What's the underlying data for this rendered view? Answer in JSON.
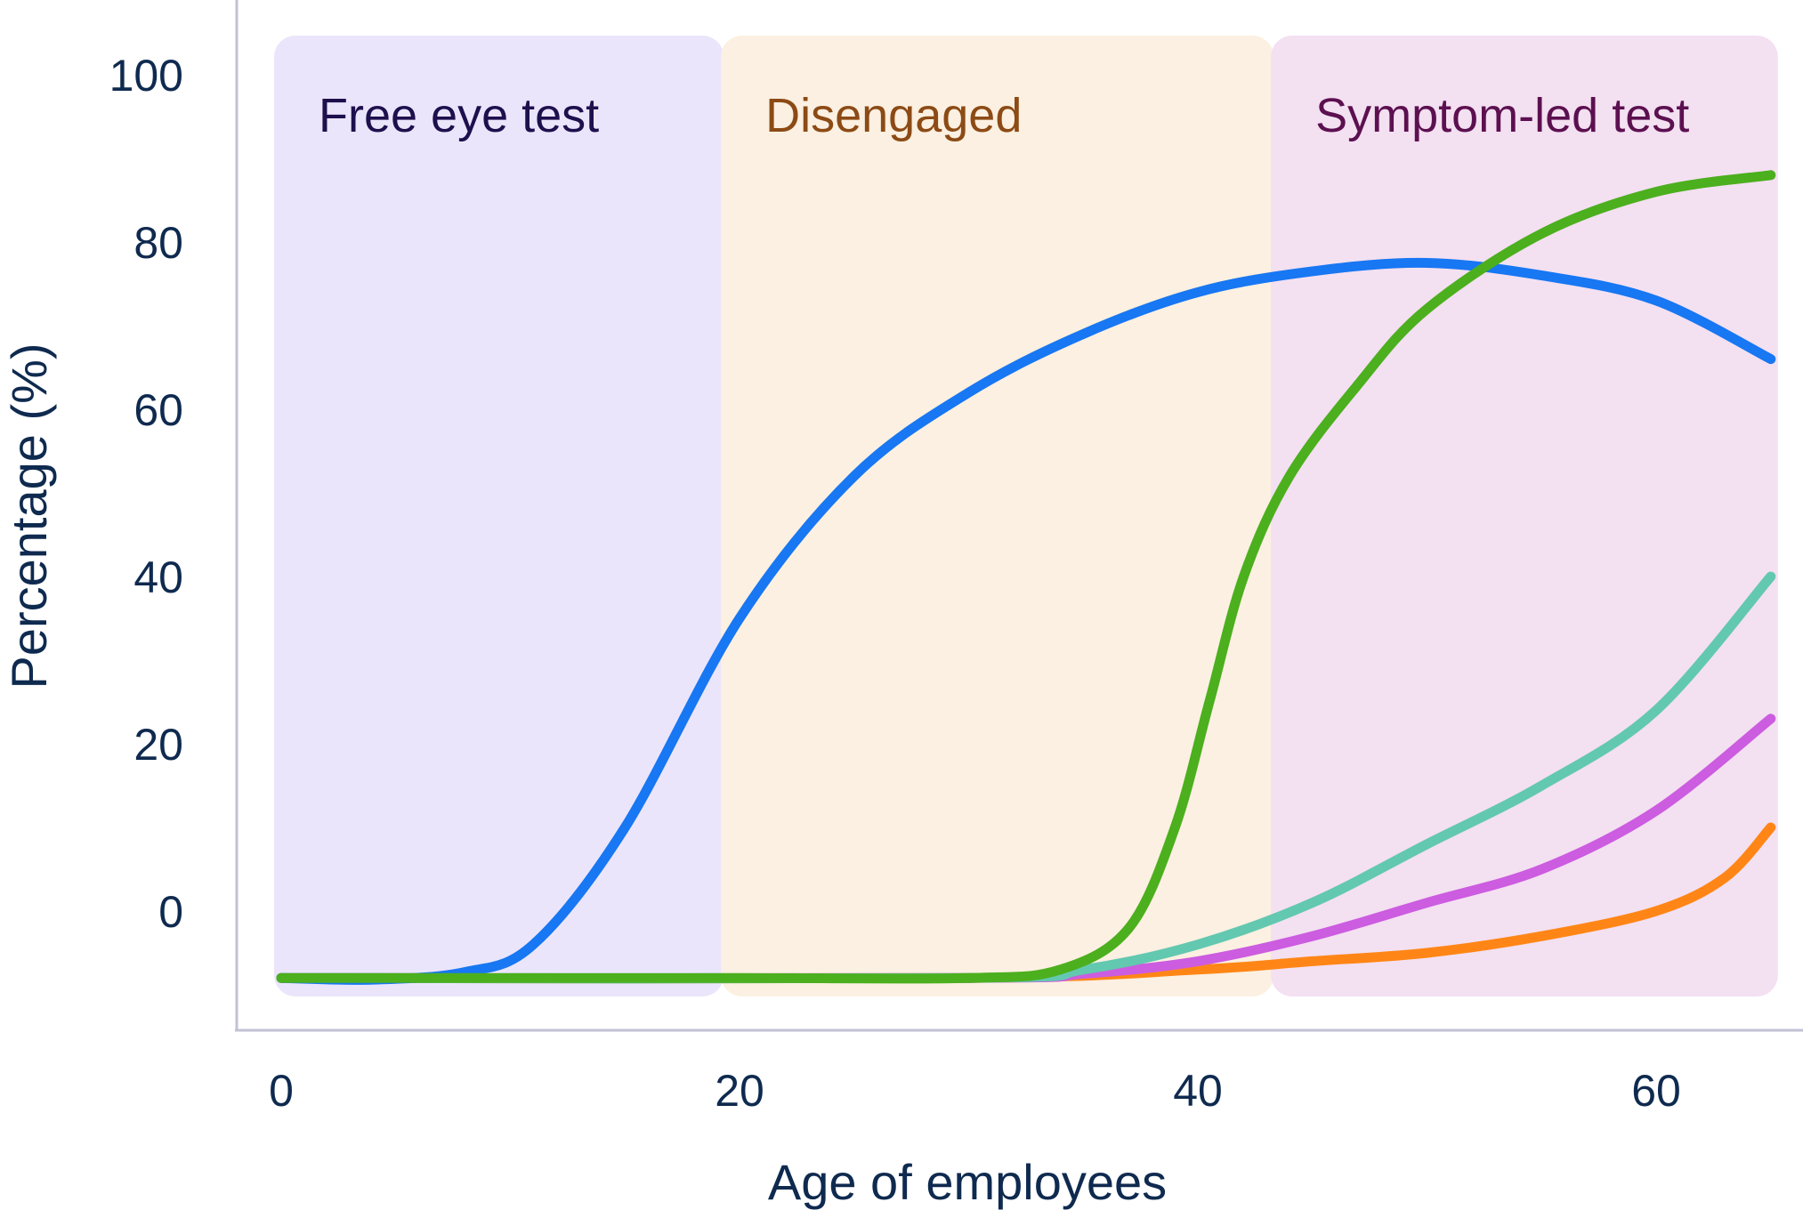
{
  "chart_data": {
    "type": "line",
    "xlabel": "Age of employees",
    "ylabel": "Percentage (%)",
    "xlim": [
      0,
      65
    ],
    "ylim": [
      0,
      100
    ],
    "x_ticks": [
      "0",
      "20",
      "40",
      "60"
    ],
    "y_ticks": [
      "0",
      "20",
      "40",
      "60",
      "80",
      "100"
    ],
    "bands": [
      {
        "label": "Free eye test",
        "x_range": [
          0,
          19
        ],
        "color": "#ebe5fb",
        "label_color": "#1e0f4d"
      },
      {
        "label": "Disengaged",
        "x_range": [
          19.5,
          43
        ],
        "color": "#fbf0e1",
        "label_color": "#8c4a15"
      },
      {
        "label": "Symptom-led test",
        "x_range": [
          43.5,
          65
        ],
        "color": "#f3e0f1",
        "label_color": "#5c1050"
      }
    ],
    "series": [
      {
        "color": "#1877f2",
        "points": [
          [
            0,
            -8
          ],
          [
            4,
            -8.2
          ],
          [
            8,
            -7.3
          ],
          [
            11,
            -4
          ],
          [
            15,
            10
          ],
          [
            20,
            35
          ],
          [
            25,
            52
          ],
          [
            30,
            62
          ],
          [
            35,
            69
          ],
          [
            40,
            74
          ],
          [
            45,
            76.5
          ],
          [
            50,
            77.5
          ],
          [
            55,
            76
          ],
          [
            60,
            73
          ],
          [
            65,
            66
          ]
        ]
      },
      {
        "color": "#4caf1e",
        "points": [
          [
            0,
            -8
          ],
          [
            10,
            -8
          ],
          [
            20,
            -8
          ],
          [
            30,
            -8
          ],
          [
            34,
            -7
          ],
          [
            37,
            -2
          ],
          [
            39,
            10
          ],
          [
            40.5,
            25
          ],
          [
            42,
            40
          ],
          [
            44,
            52
          ],
          [
            47,
            63
          ],
          [
            50,
            72
          ],
          [
            55,
            81
          ],
          [
            60,
            86
          ],
          [
            65,
            88
          ]
        ]
      },
      {
        "color": "#63c8b0",
        "points": [
          [
            0,
            -8
          ],
          [
            30,
            -8
          ],
          [
            35,
            -7
          ],
          [
            40,
            -4
          ],
          [
            45,
            1
          ],
          [
            50,
            8
          ],
          [
            55,
            15
          ],
          [
            60,
            24
          ],
          [
            65,
            40
          ]
        ]
      },
      {
        "color": "#cc5ce0",
        "points": [
          [
            0,
            -8
          ],
          [
            30,
            -8
          ],
          [
            35,
            -7.5
          ],
          [
            40,
            -6
          ],
          [
            45,
            -3
          ],
          [
            50,
            1
          ],
          [
            55,
            5
          ],
          [
            60,
            12
          ],
          [
            65,
            23
          ]
        ]
      },
      {
        "color": "#ff8616",
        "points": [
          [
            0,
            -8
          ],
          [
            30,
            -8
          ],
          [
            40,
            -7
          ],
          [
            45,
            -6
          ],
          [
            50,
            -5
          ],
          [
            55,
            -3
          ],
          [
            60,
            0
          ],
          [
            63,
            4
          ],
          [
            65,
            10
          ]
        ]
      }
    ]
  }
}
